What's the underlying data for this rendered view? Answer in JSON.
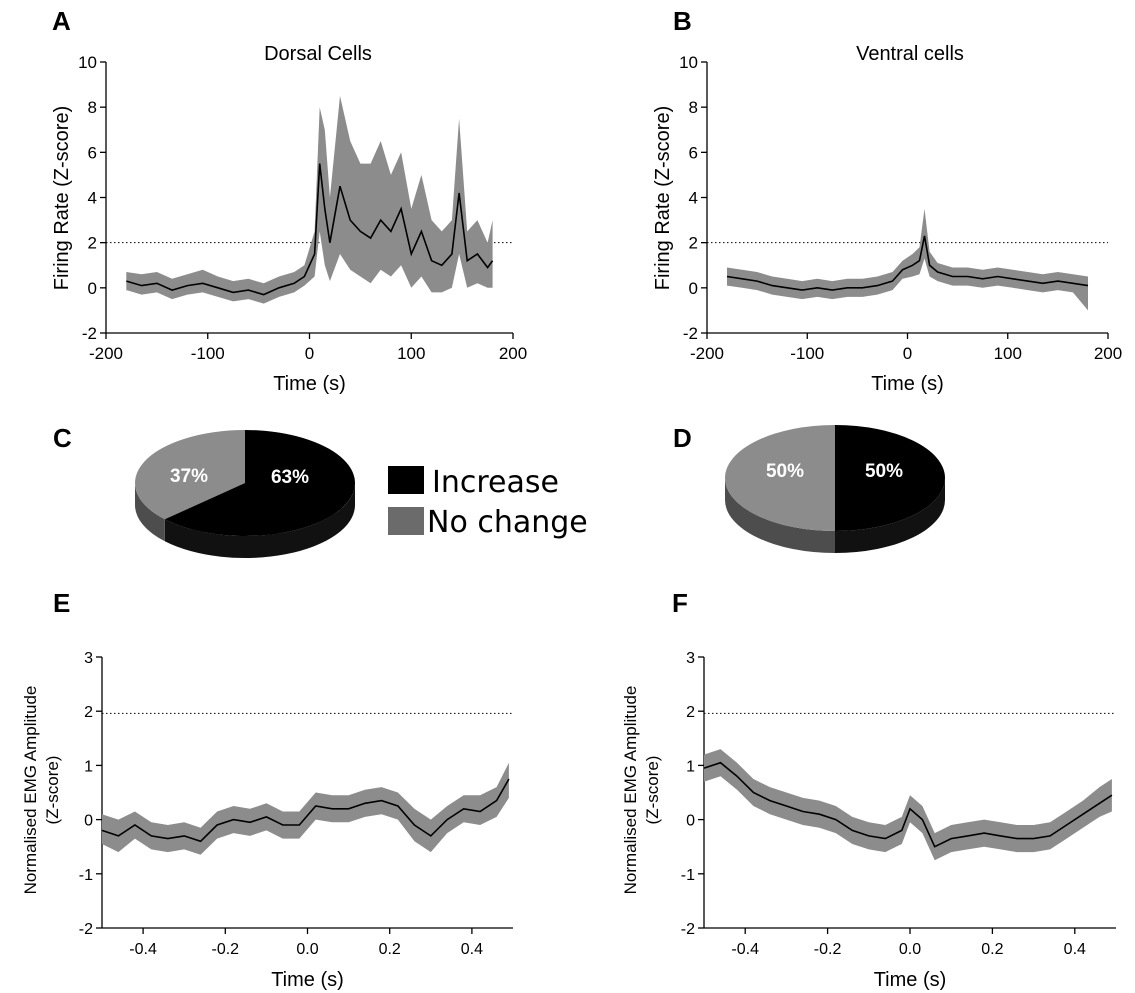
{
  "panel_letters": {
    "A": "A",
    "B": "B",
    "C": "C",
    "D": "D",
    "E": "E",
    "F": "F"
  },
  "chart_data": [
    {
      "panel": "A",
      "type": "line",
      "title": "Dorsal  Cells",
      "xlabel": "Time  (s)",
      "ylabel": "Firing Rate (Z-score)",
      "xlim": [
        -200,
        200
      ],
      "ylim": [
        -2,
        10
      ],
      "xticks": [
        "-200",
        "-100",
        "0",
        "100",
        "200"
      ],
      "yticks": [
        "-2",
        "0",
        "2",
        "4",
        "6",
        "8",
        "10"
      ],
      "threshold": 2,
      "series": [
        {
          "x": [
            -180,
            -165,
            -150,
            -135,
            -120,
            -105,
            -90,
            -75,
            -60,
            -45,
            -30,
            -15,
            -5,
            5,
            10,
            15,
            20,
            30,
            40,
            50,
            60,
            70,
            80,
            90,
            100,
            110,
            120,
            130,
            140,
            147,
            155,
            165,
            175,
            180
          ],
          "mean": [
            0.3,
            0.1,
            0.2,
            -0.1,
            0.1,
            0.2,
            0.0,
            -0.2,
            -0.1,
            -0.3,
            0.0,
            0.2,
            0.5,
            1.5,
            5.5,
            3.5,
            2.0,
            4.5,
            3.0,
            2.5,
            2.2,
            3.0,
            2.5,
            3.5,
            1.5,
            2.5,
            1.2,
            1.0,
            1.5,
            4.2,
            1.2,
            1.5,
            0.9,
            1.2
          ],
          "lower": [
            -0.1,
            -0.3,
            -0.2,
            -0.5,
            -0.3,
            -0.2,
            -0.4,
            -0.6,
            -0.5,
            -0.7,
            -0.4,
            -0.2,
            0.1,
            0.5,
            2.5,
            1.0,
            0.3,
            1.5,
            0.8,
            0.5,
            0.2,
            0.8,
            0.5,
            1.0,
            0.0,
            0.5,
            -0.2,
            -0.2,
            0.0,
            1.5,
            0.0,
            0.2,
            0.0,
            0.0
          ],
          "upper": [
            0.7,
            0.6,
            0.7,
            0.4,
            0.6,
            0.8,
            0.5,
            0.3,
            0.4,
            0.2,
            0.5,
            0.7,
            1.0,
            2.5,
            8.0,
            7.0,
            4.0,
            8.5,
            6.5,
            5.5,
            5.5,
            6.5,
            5.0,
            6.0,
            3.5,
            5.0,
            3.0,
            2.5,
            3.0,
            7.5,
            2.5,
            3.0,
            2.0,
            3.0
          ]
        }
      ]
    },
    {
      "panel": "B",
      "type": "line",
      "title": "Ventral cells",
      "xlabel": "Time  (s)",
      "ylabel": "Firing Rate (Z-score)",
      "xlim": [
        -200,
        200
      ],
      "ylim": [
        -2,
        10
      ],
      "xticks": [
        "-200",
        "-100",
        "0",
        "100",
        "200"
      ],
      "yticks": [
        "-2",
        "0",
        "2",
        "4",
        "6",
        "8",
        "10"
      ],
      "threshold": 2,
      "series": [
        {
          "x": [
            -180,
            -165,
            -150,
            -135,
            -120,
            -105,
            -90,
            -75,
            -60,
            -45,
            -30,
            -15,
            -5,
            5,
            12,
            17,
            22,
            30,
            45,
            60,
            75,
            90,
            105,
            120,
            135,
            150,
            165,
            180
          ],
          "mean": [
            0.5,
            0.4,
            0.3,
            0.1,
            0.0,
            -0.1,
            0.0,
            -0.1,
            0.0,
            0.0,
            0.1,
            0.3,
            0.8,
            1.0,
            1.2,
            2.3,
            1.0,
            0.7,
            0.5,
            0.5,
            0.4,
            0.5,
            0.4,
            0.3,
            0.2,
            0.3,
            0.2,
            0.1
          ],
          "lower": [
            0.1,
            0.0,
            -0.1,
            -0.3,
            -0.4,
            -0.5,
            -0.4,
            -0.5,
            -0.4,
            -0.4,
            -0.3,
            -0.1,
            0.4,
            0.5,
            0.6,
            1.3,
            0.5,
            0.3,
            0.1,
            0.1,
            0.0,
            0.1,
            0.0,
            -0.1,
            -0.2,
            -0.1,
            -0.2,
            -1.0
          ],
          "upper": [
            0.9,
            0.8,
            0.7,
            0.5,
            0.4,
            0.3,
            0.4,
            0.3,
            0.4,
            0.4,
            0.5,
            0.7,
            1.2,
            1.5,
            1.8,
            3.5,
            1.6,
            1.1,
            0.9,
            0.9,
            0.8,
            0.9,
            0.8,
            0.7,
            0.6,
            0.7,
            0.6,
            0.5
          ]
        }
      ]
    },
    {
      "panel": "C",
      "type": "pie",
      "labels": [
        "Increase",
        "No change"
      ],
      "values": [
        63,
        37
      ],
      "value_labels": [
        "63%",
        "37%"
      ],
      "colors": [
        "#000000",
        "#8c8c8c"
      ]
    },
    {
      "panel": "D",
      "type": "pie",
      "labels": [
        "Increase",
        "No change"
      ],
      "values": [
        50,
        50
      ],
      "value_labels": [
        "50%",
        "50%"
      ],
      "colors": [
        "#000000",
        "#8c8c8c"
      ]
    },
    {
      "panel": "E",
      "type": "line",
      "title": "",
      "xlabel": "Time  (s)",
      "ylabel": "Normalised EMG Amplitude (Z-score)",
      "ylabel_lines": [
        "Normalised EMG Amplitude",
        "(Z-score)"
      ],
      "xlim": [
        -0.5,
        0.5
      ],
      "ylim": [
        -2,
        3
      ],
      "xticks": [
        "-0.4",
        "-0.2",
        "0.0",
        "0.2",
        "0.4"
      ],
      "yticks": [
        "-2",
        "-1",
        "0",
        "1",
        "2",
        "3"
      ],
      "threshold": 1.96,
      "series": [
        {
          "x": [
            -0.5,
            -0.46,
            -0.42,
            -0.38,
            -0.34,
            -0.3,
            -0.26,
            -0.22,
            -0.18,
            -0.14,
            -0.1,
            -0.06,
            -0.02,
            0.02,
            0.06,
            0.1,
            0.14,
            0.18,
            0.22,
            0.26,
            0.3,
            0.34,
            0.38,
            0.42,
            0.46,
            0.49
          ],
          "mean": [
            -0.2,
            -0.3,
            -0.1,
            -0.3,
            -0.35,
            -0.3,
            -0.4,
            -0.1,
            0.0,
            -0.05,
            0.05,
            -0.1,
            -0.1,
            0.25,
            0.2,
            0.2,
            0.3,
            0.35,
            0.25,
            -0.1,
            -0.3,
            0.0,
            0.2,
            0.15,
            0.35,
            0.75
          ],
          "lower": [
            -0.45,
            -0.6,
            -0.35,
            -0.55,
            -0.6,
            -0.55,
            -0.65,
            -0.35,
            -0.25,
            -0.3,
            -0.2,
            -0.35,
            -0.35,
            0.0,
            -0.05,
            -0.05,
            0.05,
            0.1,
            0.0,
            -0.4,
            -0.6,
            -0.25,
            -0.05,
            -0.1,
            0.05,
            0.4
          ],
          "upper": [
            0.1,
            0.0,
            0.15,
            -0.05,
            -0.1,
            -0.05,
            -0.15,
            0.15,
            0.25,
            0.2,
            0.3,
            0.15,
            0.15,
            0.5,
            0.45,
            0.45,
            0.55,
            0.6,
            0.5,
            0.2,
            0.0,
            0.25,
            0.45,
            0.45,
            0.6,
            1.05
          ]
        }
      ]
    },
    {
      "panel": "F",
      "type": "line",
      "title": "",
      "xlabel": "Time  (s)",
      "ylabel": "Normalised EMG Amplitude (Z-score)",
      "ylabel_lines": [
        "Normalised EMG Amplitude",
        "(Z-score)"
      ],
      "xlim": [
        -0.5,
        0.5
      ],
      "ylim": [
        -2,
        3
      ],
      "xticks": [
        "-0.4",
        "-0.2",
        "0.0",
        "0.2",
        "0.4"
      ],
      "yticks": [
        "-2",
        "-1",
        "0",
        "1",
        "2",
        "3"
      ],
      "threshold": 1.96,
      "series": [
        {
          "x": [
            -0.5,
            -0.46,
            -0.42,
            -0.38,
            -0.34,
            -0.3,
            -0.26,
            -0.22,
            -0.18,
            -0.14,
            -0.1,
            -0.06,
            -0.02,
            0.0,
            0.03,
            0.06,
            0.1,
            0.14,
            0.18,
            0.22,
            0.26,
            0.3,
            0.34,
            0.38,
            0.42,
            0.46,
            0.49
          ],
          "mean": [
            0.95,
            1.05,
            0.8,
            0.5,
            0.35,
            0.25,
            0.15,
            0.1,
            0.0,
            -0.2,
            -0.3,
            -0.35,
            -0.2,
            0.2,
            0.0,
            -0.5,
            -0.35,
            -0.3,
            -0.25,
            -0.3,
            -0.35,
            -0.35,
            -0.3,
            -0.1,
            0.1,
            0.3,
            0.45
          ],
          "lower": [
            0.7,
            0.8,
            0.55,
            0.25,
            0.1,
            0.0,
            -0.1,
            -0.15,
            -0.25,
            -0.45,
            -0.55,
            -0.6,
            -0.45,
            -0.05,
            -0.25,
            -0.75,
            -0.6,
            -0.55,
            -0.5,
            -0.55,
            -0.6,
            -0.6,
            -0.55,
            -0.35,
            -0.15,
            0.05,
            0.15
          ],
          "upper": [
            1.2,
            1.3,
            1.05,
            0.75,
            0.6,
            0.5,
            0.4,
            0.35,
            0.25,
            0.05,
            -0.05,
            -0.1,
            0.05,
            0.45,
            0.25,
            -0.25,
            -0.1,
            -0.05,
            0.0,
            -0.05,
            -0.1,
            -0.1,
            -0.05,
            0.15,
            0.35,
            0.6,
            0.75
          ]
        }
      ]
    }
  ]
}
